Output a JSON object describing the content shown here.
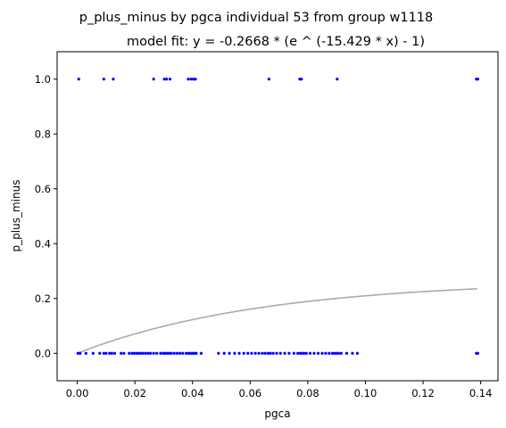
{
  "chart_data": {
    "type": "scatter",
    "title": "p_plus_minus by pgca individual 53 from group w1118",
    "subtitle": "model fit: y = -0.2668 * (e ^ (-15.429 * x) - 1)",
    "xlabel": "pgca",
    "ylabel": "p_plus_minus",
    "xlim": [
      -0.007,
      0.146
    ],
    "ylim": [
      -0.1,
      1.1
    ],
    "xticks": [
      0.0,
      0.02,
      0.04,
      0.06,
      0.08,
      0.1,
      0.12,
      0.14
    ],
    "xtick_labels": [
      "0.00",
      "0.02",
      "0.04",
      "0.06",
      "0.08",
      "0.10",
      "0.12",
      "0.14"
    ],
    "yticks": [
      0.0,
      0.2,
      0.4,
      0.6,
      0.8,
      1.0
    ],
    "ytick_labels": [
      "0.0",
      "0.2",
      "0.4",
      "0.6",
      "0.8",
      "1.0"
    ],
    "grid": false,
    "point_color": "#0000ff",
    "fit_color": "#aaaaaa",
    "points_at_1": [
      0.0005,
      0.0092,
      0.0125,
      0.0265,
      0.0302,
      0.031,
      0.0322,
      0.0385,
      0.0395,
      0.0403,
      0.041,
      0.0665,
      0.0772,
      0.0778,
      0.0902,
      0.1385,
      0.139
    ],
    "points_at_0": [
      0.0002,
      0.001,
      0.003,
      0.0055,
      0.0078,
      0.0092,
      0.01,
      0.0112,
      0.012,
      0.013,
      0.0152,
      0.0162,
      0.018,
      0.019,
      0.0197,
      0.0205,
      0.0212,
      0.022,
      0.0228,
      0.0237,
      0.0246,
      0.0254,
      0.0265,
      0.0276,
      0.0289,
      0.0298,
      0.0305,
      0.0312,
      0.0319,
      0.0326,
      0.0336,
      0.0346,
      0.0356,
      0.0366,
      0.0378,
      0.0385,
      0.0392,
      0.0398,
      0.0403,
      0.0408,
      0.0413,
      0.043,
      0.049,
      0.051,
      0.0528,
      0.0546,
      0.0562,
      0.0578,
      0.0592,
      0.0605,
      0.0618,
      0.063,
      0.0642,
      0.0652,
      0.0662,
      0.067,
      0.068,
      0.0692,
      0.0705,
      0.072,
      0.0735,
      0.0752,
      0.0765,
      0.0773,
      0.078,
      0.0787,
      0.0795,
      0.0808,
      0.0822,
      0.0836,
      0.085,
      0.0862,
      0.0874,
      0.0885,
      0.0893,
      0.09,
      0.0907,
      0.0916,
      0.0935,
      0.0955,
      0.0972,
      0.1385,
      0.139
    ],
    "fit": {
      "a": -0.2668,
      "b": -15.429,
      "x_range": [
        0.0,
        0.1388
      ]
    }
  }
}
